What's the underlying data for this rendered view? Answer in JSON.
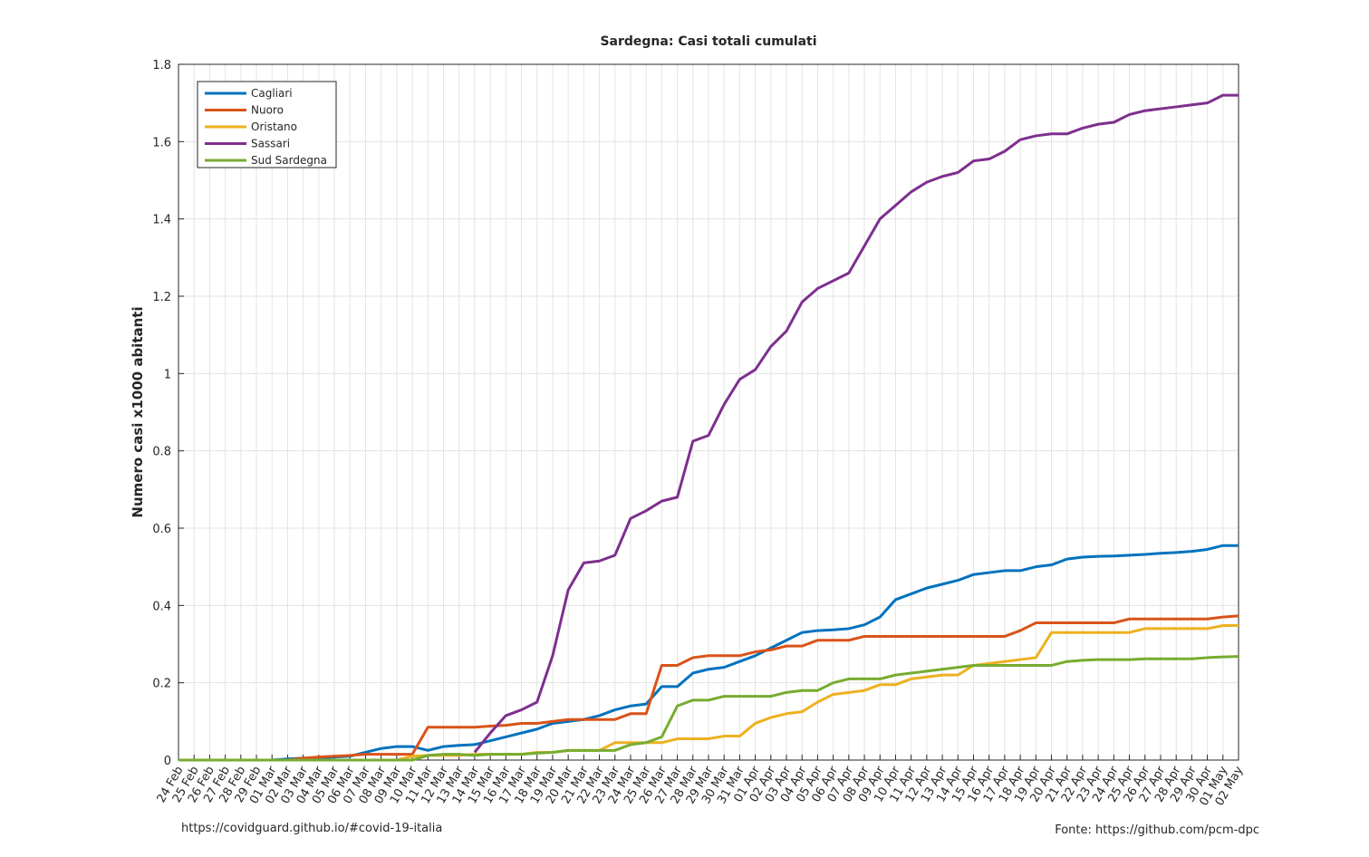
{
  "chart_data": {
    "type": "line",
    "title": "Sardegna: Casi totali cumulati",
    "y_label": "Numero casi x1000 abitanti",
    "annotations": [
      "https://covidguard.github.io/#covid-19-italia",
      "Fonte: https://github.com/pcm-dpc"
    ],
    "categories": [
      "24 Feb",
      "25 Feb",
      "26 Feb",
      "27 Feb",
      "28 Feb",
      "29 Feb",
      "01 Mar",
      "02 Mar",
      "03 Mar",
      "04 Mar",
      "05 Mar",
      "06 Mar",
      "07 Mar",
      "08 Mar",
      "09 Mar",
      "10 Mar",
      "11 Mar",
      "12 Mar",
      "13 Mar",
      "14 Mar",
      "15 Mar",
      "16 Mar",
      "17 Mar",
      "18 Mar",
      "19 Mar",
      "20 Mar",
      "21 Mar",
      "22 Mar",
      "23 Mar",
      "24 Mar",
      "25 Mar",
      "26 Mar",
      "27 Mar",
      "28 Mar",
      "29 Mar",
      "30 Mar",
      "31 Mar",
      "01 Apr",
      "02 Apr",
      "03 Apr",
      "04 Apr",
      "05 Apr",
      "06 Apr",
      "07 Apr",
      "08 Apr",
      "09 Apr",
      "10 Apr",
      "11 Apr",
      "12 Apr",
      "13 Apr",
      "14 Apr",
      "15 Apr",
      "16 Apr",
      "17 Apr",
      "18 Apr",
      "19 Apr",
      "20 Apr",
      "21 Apr",
      "22 Apr",
      "23 Apr",
      "24 Apr",
      "25 Apr",
      "26 Apr",
      "27 Apr",
      "28 Apr",
      "29 Apr",
      "30 Apr",
      "01 May",
      "02 May"
    ],
    "series": [
      {
        "name": "Cagliari",
        "color": "#0072BD",
        "values": [
          0,
          0,
          0,
          0,
          0,
          0,
          0,
          0.003,
          0.005,
          0.005,
          0.008,
          0.01,
          0.02,
          0.03,
          0.035,
          0.035,
          0.025,
          0.035,
          0.038,
          0.04,
          0.05,
          0.06,
          0.07,
          0.08,
          0.095,
          0.1,
          0.105,
          0.115,
          0.13,
          0.14,
          0.145,
          0.19,
          0.19,
          0.225,
          0.235,
          0.24,
          0.255,
          0.27,
          0.29,
          0.31,
          0.33,
          0.335,
          0.337,
          0.34,
          0.35,
          0.37,
          0.415,
          0.43,
          0.445,
          0.455,
          0.465,
          0.48,
          0.485,
          0.49,
          0.49,
          0.5,
          0.505,
          0.52,
          0.525,
          0.527,
          0.528,
          0.53,
          0.532,
          0.535,
          0.537,
          0.54,
          0.545,
          0.555,
          0.555
        ]
      },
      {
        "name": "Nuoro",
        "color": "#D95319",
        "values": [
          0,
          0,
          0,
          0,
          0,
          0,
          0,
          0,
          0.005,
          0.008,
          0.01,
          0.012,
          0.015,
          0.015,
          0.015,
          0.015,
          0.085,
          0.085,
          0.085,
          0.085,
          0.088,
          0.09,
          0.095,
          0.095,
          0.1,
          0.105,
          0.105,
          0.105,
          0.105,
          0.12,
          0.12,
          0.245,
          0.245,
          0.265,
          0.27,
          0.27,
          0.27,
          0.28,
          0.285,
          0.295,
          0.295,
          0.31,
          0.31,
          0.31,
          0.32,
          0.32,
          0.32,
          0.32,
          0.32,
          0.32,
          0.32,
          0.32,
          0.32,
          0.32,
          0.335,
          0.355,
          0.355,
          0.355,
          0.355,
          0.355,
          0.355,
          0.365,
          0.365,
          0.365,
          0.365,
          0.365,
          0.365,
          0.37,
          0.373
        ]
      },
      {
        "name": "Oristano",
        "color": "#EDB120",
        "values": [
          0,
          0,
          0,
          0,
          0,
          0,
          0,
          0,
          0,
          0,
          0,
          0,
          0,
          0,
          0,
          0.01,
          0.012,
          0.012,
          0.012,
          0.015,
          0.015,
          0.015,
          0.015,
          0.02,
          0.02,
          0.025,
          0.025,
          0.025,
          0.045,
          0.045,
          0.045,
          0.045,
          0.055,
          0.055,
          0.055,
          0.062,
          0.062,
          0.095,
          0.11,
          0.12,
          0.125,
          0.15,
          0.17,
          0.175,
          0.18,
          0.195,
          0.195,
          0.21,
          0.215,
          0.22,
          0.22,
          0.245,
          0.25,
          0.255,
          0.26,
          0.265,
          0.33,
          0.33,
          0.33,
          0.33,
          0.33,
          0.33,
          0.34,
          0.34,
          0.34,
          0.34,
          0.34,
          0.348,
          0.348
        ]
      },
      {
        "name": "Sassari",
        "color": "#7E2F8E",
        "values": [
          null,
          null,
          null,
          null,
          null,
          null,
          null,
          null,
          null,
          null,
          null,
          null,
          null,
          null,
          null,
          null,
          null,
          null,
          null,
          0.02,
          0.07,
          0.115,
          0.13,
          0.15,
          0.27,
          0.44,
          0.51,
          0.515,
          0.53,
          0.625,
          0.645,
          0.67,
          0.68,
          0.825,
          0.84,
          0.92,
          0.985,
          1.01,
          1.07,
          1.11,
          1.185,
          1.22,
          1.24,
          1.26,
          1.33,
          1.4,
          1.435,
          1.47,
          1.495,
          1.51,
          1.52,
          1.55,
          1.555,
          1.575,
          1.605,
          1.615,
          1.62,
          1.62,
          1.635,
          1.645,
          1.65,
          1.67,
          1.68,
          1.685,
          1.69,
          1.695,
          1.7,
          1.72,
          1.72
        ]
      },
      {
        "name": "Sud Sardegna",
        "color": "#77AC30",
        "values": [
          0,
          0,
          0,
          0,
          0,
          0,
          0,
          0,
          0,
          0,
          0,
          0,
          0,
          0,
          0,
          0,
          0.012,
          0.015,
          0.015,
          0.012,
          0.015,
          0.015,
          0.015,
          0.018,
          0.02,
          0.025,
          0.025,
          0.025,
          0.025,
          0.04,
          0.045,
          0.06,
          0.14,
          0.155,
          0.155,
          0.165,
          0.165,
          0.165,
          0.165,
          0.175,
          0.18,
          0.18,
          0.2,
          0.21,
          0.21,
          0.21,
          0.22,
          0.225,
          0.23,
          0.235,
          0.24,
          0.245,
          0.245,
          0.245,
          0.245,
          0.245,
          0.245,
          0.255,
          0.258,
          0.26,
          0.26,
          0.26,
          0.262,
          0.262,
          0.262,
          0.262,
          0.265,
          0.267,
          0.268
        ]
      }
    ],
    "ylim": [
      0,
      1.8
    ],
    "yticks": [
      0,
      0.2,
      0.4,
      0.6,
      0.8,
      1,
      1.2,
      1.4,
      1.6,
      1.8
    ],
    "grid": true,
    "legend": "top-left"
  }
}
